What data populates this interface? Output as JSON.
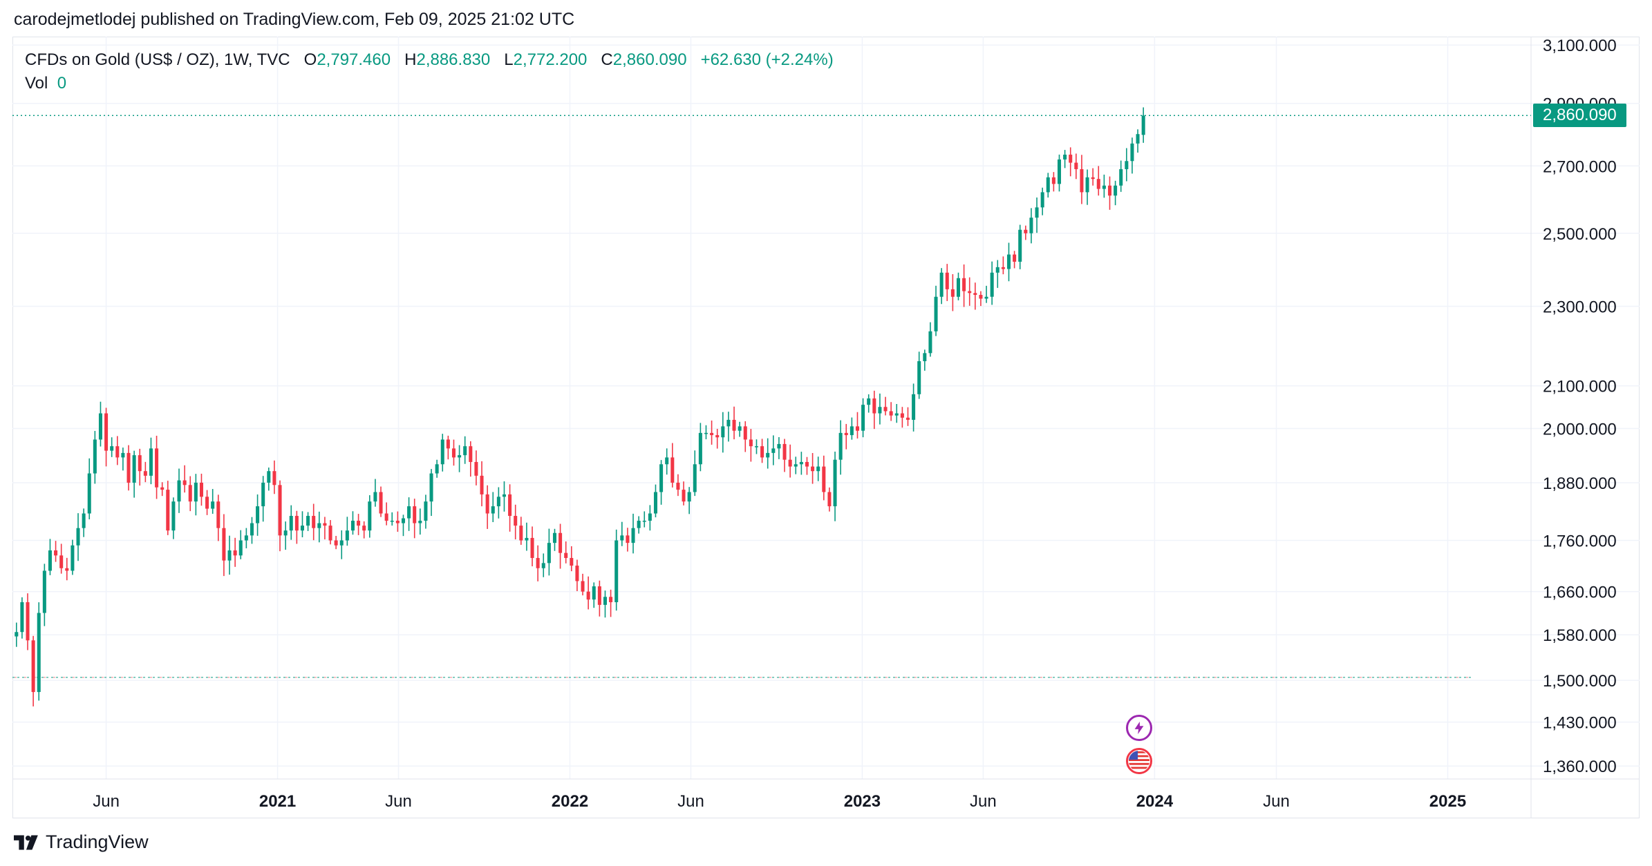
{
  "publisher": {
    "text": "carodejmetlodej published on TradingView.com, Feb 09, 2025 21:02 UTC"
  },
  "legend": {
    "symbol": "CFDs on Gold (US$ / OZ), 1W, TVC",
    "open_label": "O",
    "open": "2,797.460",
    "high_label": "H",
    "high": "2,886.830",
    "low_label": "L",
    "low": "2,772.200",
    "close_label": "C",
    "close": "2,860.090",
    "change": "+62.630 (+2.24%)",
    "vol_label": "Vol",
    "vol": "0"
  },
  "price_tag": "2,860.090",
  "brand": {
    "name": "TradingView",
    "icon": "tradingview-logo-icon"
  },
  "events": [
    {
      "name": "lightning-event-icon"
    },
    {
      "name": "us-flag-event-icon"
    }
  ],
  "colors": {
    "up": "#089981",
    "down": "#f23645",
    "grid": "#f0f3fa",
    "text": "#131722",
    "axis_text": "#131722",
    "event_purple": "#9c27b0"
  },
  "chart_data": {
    "type": "candlestick",
    "title": "CFDs on Gold (US$ / OZ), 1W, TVC",
    "interval": "1W",
    "y_scale": "log",
    "ylim": [
      1340,
      3130
    ],
    "xlim": [
      "2020-02-05",
      "2025-04-15"
    ],
    "y_ticks": [
      "3,100.000",
      "2,900.000",
      "2,700.000",
      "2,500.000",
      "2,300.000",
      "2,100.000",
      "2,000.000",
      "1,880.000",
      "1,760.000",
      "1,660.000",
      "1,580.000",
      "1,500.000",
      "1,430.000",
      "1,360.000"
    ],
    "x_ticks": [
      {
        "label": "Jun",
        "date": "2020-06-01",
        "bold": false
      },
      {
        "label": "2021",
        "date": "2021-01-01",
        "bold": true
      },
      {
        "label": "Jun",
        "date": "2021-06-01",
        "bold": false
      },
      {
        "label": "2022",
        "date": "2022-01-01",
        "bold": true
      },
      {
        "label": "Jun",
        "date": "2022-06-01",
        "bold": false
      },
      {
        "label": "2023",
        "date": "2023-01-01",
        "bold": true
      },
      {
        "label": "Jun",
        "date": "2023-06-01",
        "bold": false
      },
      {
        "label": "2024",
        "date": "2024-01-01",
        "bold": true
      },
      {
        "label": "Jun",
        "date": "2024-06-01",
        "bold": false
      },
      {
        "label": "2025",
        "date": "2025-01-01",
        "bold": true
      }
    ],
    "last_price": 2860.09,
    "reference_line": 1505,
    "start_date": "2020-02-10",
    "close_path": [
      1585,
      1640,
      1570,
      1480,
      1620,
      1700,
      1740,
      1730,
      1705,
      1700,
      1750,
      1785,
      1815,
      1900,
      1975,
      2035,
      1950,
      1960,
      1935,
      1945,
      1880,
      1940,
      1905,
      1895,
      1955,
      1870,
      1865,
      1780,
      1840,
      1885,
      1875,
      1840,
      1880,
      1850,
      1825,
      1840,
      1785,
      1720,
      1740,
      1730,
      1760,
      1770,
      1795,
      1830,
      1880,
      1905,
      1875,
      1770,
      1780,
      1810,
      1780,
      1790,
      1810,
      1785,
      1795,
      1790,
      1760,
      1750,
      1760,
      1780,
      1800,
      1790,
      1780,
      1840,
      1860,
      1815,
      1800,
      1800,
      1795,
      1805,
      1830,
      1795,
      1800,
      1840,
      1900,
      1920,
      1975,
      1955,
      1935,
      1940,
      1960,
      1925,
      1895,
      1855,
      1815,
      1830,
      1850,
      1855,
      1810,
      1790,
      1760,
      1765,
      1725,
      1705,
      1715,
      1755,
      1775,
      1735,
      1725,
      1710,
      1680,
      1660,
      1645,
      1670,
      1635,
      1650,
      1640,
      1760,
      1770,
      1755,
      1785,
      1800,
      1800,
      1815,
      1860,
      1920,
      1935,
      1880,
      1865,
      1840,
      1860,
      1920,
      1990,
      1990,
      1985,
      1980,
      2005,
      2020,
      1995,
      2005,
      1975,
      1960,
      1960,
      1935,
      1945,
      1955,
      1965,
      1930,
      1915,
      1920,
      1925,
      1915,
      1905,
      1915,
      1860,
      1830,
      1930,
      1990,
      1985,
      2005,
      1995,
      2055,
      2070,
      2035,
      2050,
      2040,
      2030,
      2035,
      2025,
      2020,
      2080,
      2160,
      2180,
      2235,
      2325,
      2390,
      2345,
      2325,
      2375,
      2340,
      2335,
      2330,
      2320,
      2325,
      2390,
      2405,
      2400,
      2440,
      2420,
      2510,
      2500,
      2545,
      2575,
      2620,
      2665,
      2645,
      2720,
      2735,
      2710,
      2690,
      2620,
      2665,
      2660,
      2630,
      2640,
      2610,
      2640,
      2690,
      2715,
      2770,
      2800,
      2860
    ]
  }
}
